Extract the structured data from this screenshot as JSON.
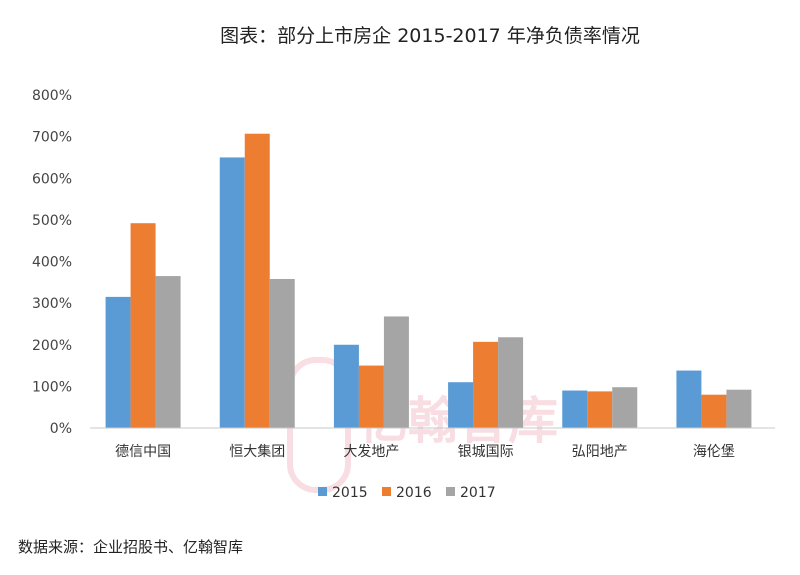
{
  "chart_data": {
    "type": "bar",
    "title": "图表：部分上市房企 2015-2017 年净负债率情况",
    "categories": [
      "德信中国",
      "恒大集团",
      "大发地产",
      "银城国际",
      "弘阳地产",
      "海伦堡"
    ],
    "series": [
      {
        "name": "2015",
        "values": [
          315,
          650,
          200,
          110,
          90,
          138
        ]
      },
      {
        "name": "2016",
        "values": [
          492,
          707,
          150,
          207,
          88,
          80
        ]
      },
      {
        "name": "2017",
        "values": [
          365,
          358,
          268,
          218,
          98,
          92
        ]
      }
    ],
    "ylim": [
      0,
      800
    ],
    "yticks": [
      "0%",
      "100%",
      "200%",
      "300%",
      "400%",
      "500%",
      "600%",
      "700%",
      "800%"
    ],
    "xlabel": "",
    "ylabel": "",
    "grid": false,
    "legend": "bottom",
    "colors": [
      "#5B9BD5",
      "#ED7D31",
      "#A5A5A5"
    ]
  },
  "source": "数据来源：企业招股书、亿翰智库",
  "watermark": "亿翰智库"
}
